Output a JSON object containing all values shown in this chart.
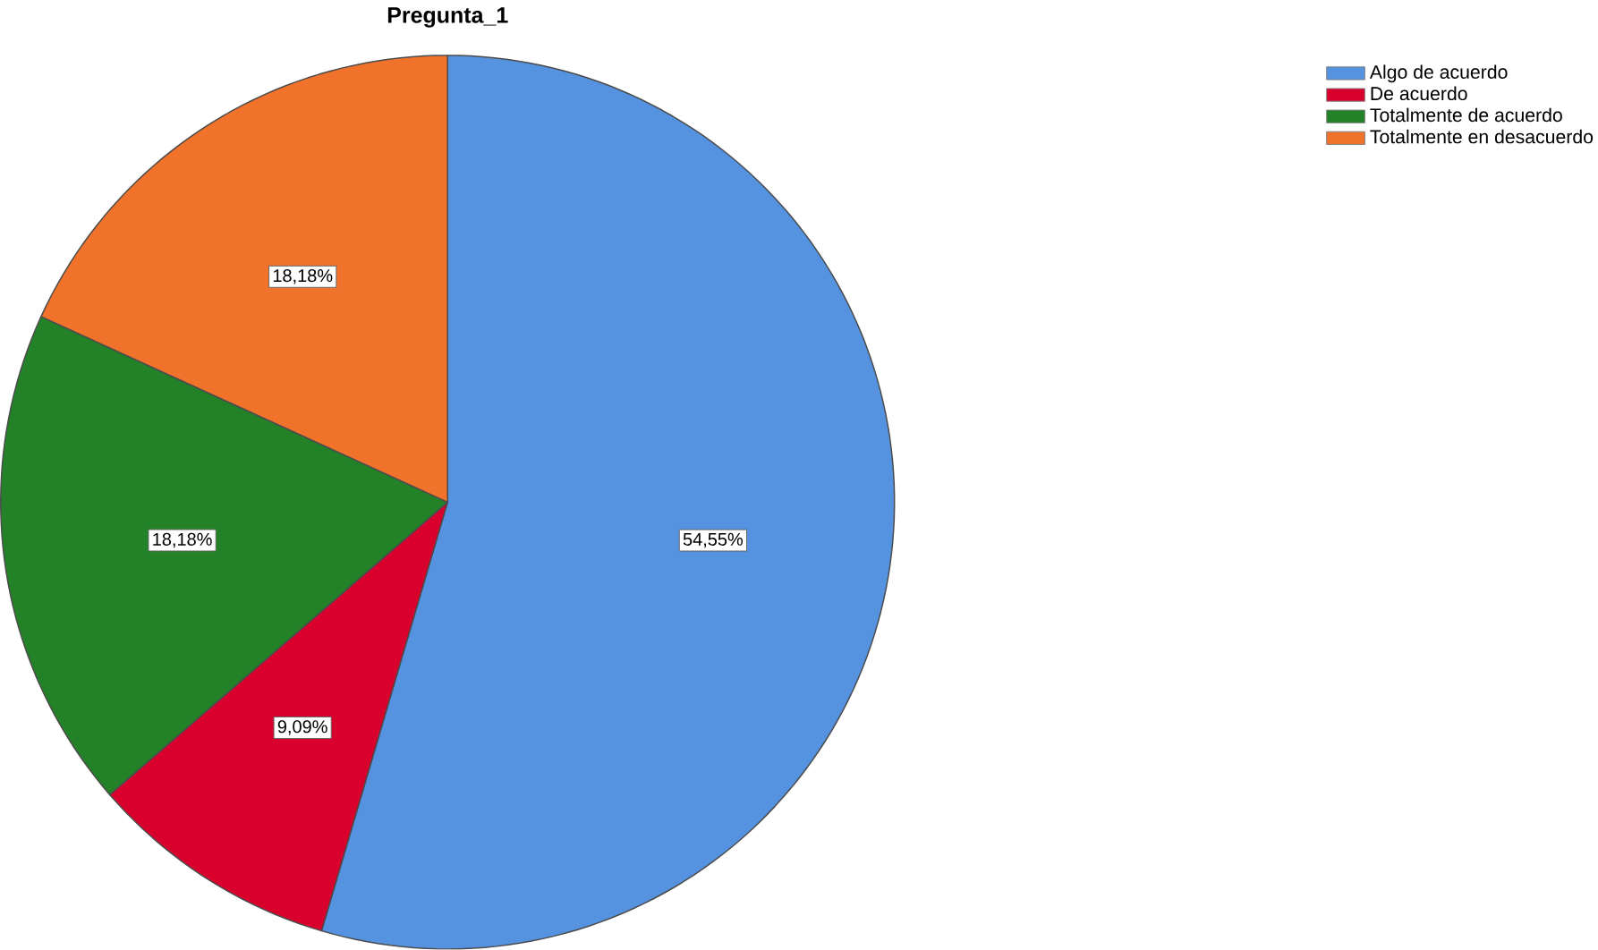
{
  "chart_data": {
    "type": "pie",
    "title": "Pregunta_1",
    "categories": [
      "Algo de acuerdo",
      "De acuerdo",
      "Totalmente de acuerdo",
      "Totalmente en desacuerdo"
    ],
    "values": [
      54.55,
      9.09,
      18.18,
      18.18
    ],
    "value_labels": [
      "54,55%",
      "9,09%",
      "18,18%",
      "18,18%"
    ],
    "colors": [
      "#5592e0",
      "#d9002e",
      "#238128",
      "#f0722b"
    ],
    "legend": "top right"
  }
}
